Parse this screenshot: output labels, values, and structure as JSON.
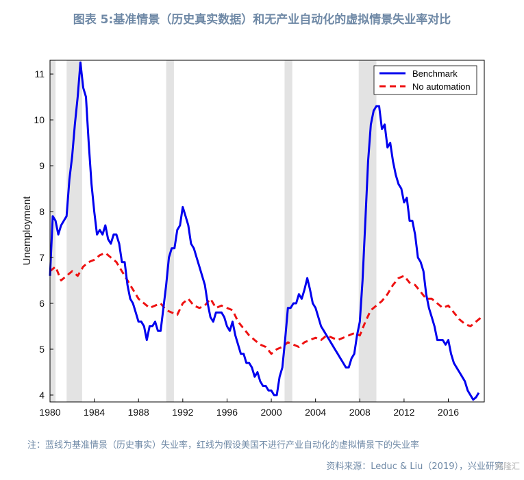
{
  "title": "图表 5:基准情景（历史真实数据）和无产业自动化的虚拟情景失业率对比",
  "note": "注：蓝线为基准情景（历史事实）失业率，红线为假设美国不进行产业自动化的虚拟情景下的失业率",
  "source": "资料来源：Leduc & Liu（2019），兴业研究",
  "watermark": "格隆汇",
  "chart_data": {
    "type": "line",
    "title": "",
    "xlabel": "",
    "ylabel": "Unemployment",
    "xlim": [
      1980,
      2019.25
    ],
    "ylim": [
      3.85,
      11.3
    ],
    "xticks": [
      1980,
      1984,
      1988,
      1992,
      1996,
      2000,
      2004,
      2008,
      2012,
      2016
    ],
    "yticks": [
      4,
      5,
      6,
      7,
      8,
      9,
      10,
      11
    ],
    "recession_shading": [
      [
        1980.0,
        1980.5
      ],
      [
        1981.5,
        1982.9
      ],
      [
        1990.5,
        1991.2
      ],
      [
        2001.2,
        2001.9
      ],
      [
        2007.9,
        2009.5
      ]
    ],
    "legend_position": "top-right",
    "colors": {
      "benchmark": "#0000ee",
      "no_automation": "#ee1111",
      "shading": "#e3e3e3"
    },
    "series": [
      {
        "name": "Benchmark",
        "style": "solid",
        "points": [
          [
            1980.0,
            6.6
          ],
          [
            1980.25,
            7.9
          ],
          [
            1980.5,
            7.8
          ],
          [
            1980.75,
            7.5
          ],
          [
            1981.0,
            7.7
          ],
          [
            1981.25,
            7.8
          ],
          [
            1981.5,
            7.9
          ],
          [
            1981.75,
            8.7
          ],
          [
            1982.0,
            9.2
          ],
          [
            1982.25,
            9.9
          ],
          [
            1982.5,
            10.5
          ],
          [
            1982.75,
            11.25
          ],
          [
            1983.0,
            10.7
          ],
          [
            1983.25,
            10.5
          ],
          [
            1983.5,
            9.5
          ],
          [
            1983.75,
            8.6
          ],
          [
            1984.0,
            8.0
          ],
          [
            1984.25,
            7.5
          ],
          [
            1984.5,
            7.6
          ],
          [
            1984.75,
            7.5
          ],
          [
            1985.0,
            7.7
          ],
          [
            1985.25,
            7.4
          ],
          [
            1985.5,
            7.3
          ],
          [
            1985.75,
            7.5
          ],
          [
            1986.0,
            7.5
          ],
          [
            1986.25,
            7.3
          ],
          [
            1986.5,
            6.9
          ],
          [
            1986.75,
            6.9
          ],
          [
            1987.0,
            6.4
          ],
          [
            1987.25,
            6.1
          ],
          [
            1987.5,
            6.0
          ],
          [
            1987.75,
            5.8
          ],
          [
            1988.0,
            5.6
          ],
          [
            1988.25,
            5.6
          ],
          [
            1988.5,
            5.5
          ],
          [
            1988.75,
            5.2
          ],
          [
            1989.0,
            5.5
          ],
          [
            1989.25,
            5.5
          ],
          [
            1989.5,
            5.6
          ],
          [
            1989.75,
            5.4
          ],
          [
            1990.0,
            5.4
          ],
          [
            1990.25,
            5.9
          ],
          [
            1990.5,
            6.4
          ],
          [
            1990.75,
            7.0
          ],
          [
            1991.0,
            7.2
          ],
          [
            1991.25,
            7.2
          ],
          [
            1991.5,
            7.6
          ],
          [
            1991.75,
            7.7
          ],
          [
            1992.0,
            8.1
          ],
          [
            1992.25,
            7.9
          ],
          [
            1992.5,
            7.7
          ],
          [
            1992.75,
            7.3
          ],
          [
            1993.0,
            7.2
          ],
          [
            1993.25,
            7.0
          ],
          [
            1993.5,
            6.8
          ],
          [
            1993.75,
            6.6
          ],
          [
            1994.0,
            6.4
          ],
          [
            1994.25,
            6.0
          ],
          [
            1994.5,
            5.7
          ],
          [
            1994.75,
            5.6
          ],
          [
            1995.0,
            5.8
          ],
          [
            1995.25,
            5.8
          ],
          [
            1995.5,
            5.8
          ],
          [
            1995.75,
            5.7
          ],
          [
            1996.0,
            5.5
          ],
          [
            1996.25,
            5.4
          ],
          [
            1996.5,
            5.6
          ],
          [
            1996.75,
            5.3
          ],
          [
            1997.0,
            5.1
          ],
          [
            1997.25,
            4.9
          ],
          [
            1997.5,
            4.9
          ],
          [
            1997.75,
            4.7
          ],
          [
            1998.0,
            4.7
          ],
          [
            1998.25,
            4.6
          ],
          [
            1998.5,
            4.4
          ],
          [
            1998.75,
            4.5
          ],
          [
            1999.0,
            4.3
          ],
          [
            1999.25,
            4.2
          ],
          [
            1999.5,
            4.2
          ],
          [
            1999.75,
            4.1
          ],
          [
            2000.0,
            4.1
          ],
          [
            2000.25,
            4.0
          ],
          [
            2000.5,
            4.0
          ],
          [
            2000.75,
            4.4
          ],
          [
            2001.0,
            4.6
          ],
          [
            2001.25,
            5.2
          ],
          [
            2001.5,
            5.9
          ],
          [
            2001.75,
            5.9
          ],
          [
            2002.0,
            6.0
          ],
          [
            2002.25,
            6.0
          ],
          [
            2002.5,
            6.2
          ],
          [
            2002.75,
            6.1
          ],
          [
            2003.0,
            6.3
          ],
          [
            2003.25,
            6.55
          ],
          [
            2003.5,
            6.3
          ],
          [
            2003.75,
            6.0
          ],
          [
            2004.0,
            5.9
          ],
          [
            2004.25,
            5.7
          ],
          [
            2004.5,
            5.5
          ],
          [
            2004.75,
            5.4
          ],
          [
            2005.0,
            5.3
          ],
          [
            2005.25,
            5.2
          ],
          [
            2005.5,
            5.1
          ],
          [
            2005.75,
            5.0
          ],
          [
            2006.0,
            4.9
          ],
          [
            2006.25,
            4.8
          ],
          [
            2006.5,
            4.7
          ],
          [
            2006.75,
            4.6
          ],
          [
            2007.0,
            4.6
          ],
          [
            2007.25,
            4.8
          ],
          [
            2007.5,
            4.9
          ],
          [
            2007.75,
            5.3
          ],
          [
            2008.0,
            5.6
          ],
          [
            2008.25,
            6.5
          ],
          [
            2008.5,
            7.8
          ],
          [
            2008.75,
            9.1
          ],
          [
            2009.0,
            9.9
          ],
          [
            2009.25,
            10.2
          ],
          [
            2009.5,
            10.3
          ],
          [
            2009.75,
            10.3
          ],
          [
            2010.0,
            9.8
          ],
          [
            2010.25,
            9.9
          ],
          [
            2010.5,
            9.4
          ],
          [
            2010.75,
            9.5
          ],
          [
            2011.0,
            9.1
          ],
          [
            2011.25,
            8.8
          ],
          [
            2011.5,
            8.6
          ],
          [
            2011.75,
            8.5
          ],
          [
            2012.0,
            8.2
          ],
          [
            2012.25,
            8.3
          ],
          [
            2012.5,
            7.8
          ],
          [
            2012.75,
            7.8
          ],
          [
            2013.0,
            7.5
          ],
          [
            2013.25,
            7.0
          ],
          [
            2013.5,
            6.9
          ],
          [
            2013.75,
            6.7
          ],
          [
            2014.0,
            6.2
          ],
          [
            2014.25,
            5.9
          ],
          [
            2014.5,
            5.7
          ],
          [
            2014.75,
            5.5
          ],
          [
            2015.0,
            5.2
          ],
          [
            2015.25,
            5.2
          ],
          [
            2015.5,
            5.2
          ],
          [
            2015.75,
            5.1
          ],
          [
            2016.0,
            5.2
          ],
          [
            2016.25,
            4.9
          ],
          [
            2016.5,
            4.7
          ],
          [
            2016.75,
            4.6
          ],
          [
            2017.0,
            4.5
          ],
          [
            2017.25,
            4.4
          ],
          [
            2017.5,
            4.3
          ],
          [
            2017.75,
            4.1
          ],
          [
            2018.0,
            4.0
          ],
          [
            2018.25,
            3.9
          ],
          [
            2018.5,
            3.95
          ],
          [
            2018.75,
            4.05
          ]
        ]
      },
      {
        "name": "No automation",
        "style": "dashed",
        "points": [
          [
            1980.0,
            6.7
          ],
          [
            1980.5,
            6.8
          ],
          [
            1981.0,
            6.5
          ],
          [
            1981.5,
            6.6
          ],
          [
            1982.0,
            6.7
          ],
          [
            1982.5,
            6.6
          ],
          [
            1983.0,
            6.8
          ],
          [
            1983.5,
            6.9
          ],
          [
            1984.0,
            6.95
          ],
          [
            1984.5,
            7.05
          ],
          [
            1985.0,
            7.1
          ],
          [
            1985.5,
            7.0
          ],
          [
            1986.0,
            6.9
          ],
          [
            1986.5,
            6.7
          ],
          [
            1987.0,
            6.5
          ],
          [
            1987.5,
            6.3
          ],
          [
            1988.0,
            6.1
          ],
          [
            1988.5,
            6.0
          ],
          [
            1989.0,
            5.9
          ],
          [
            1989.5,
            5.95
          ],
          [
            1990.0,
            6.0
          ],
          [
            1990.5,
            5.85
          ],
          [
            1991.0,
            5.8
          ],
          [
            1991.5,
            5.75
          ],
          [
            1992.0,
            6.0
          ],
          [
            1992.5,
            6.1
          ],
          [
            1993.0,
            5.95
          ],
          [
            1993.5,
            5.9
          ],
          [
            1994.0,
            5.95
          ],
          [
            1994.5,
            6.1
          ],
          [
            1995.0,
            5.9
          ],
          [
            1995.5,
            5.95
          ],
          [
            1996.0,
            5.9
          ],
          [
            1996.5,
            5.85
          ],
          [
            1997.0,
            5.6
          ],
          [
            1997.5,
            5.45
          ],
          [
            1998.0,
            5.3
          ],
          [
            1998.5,
            5.2
          ],
          [
            1999.0,
            5.1
          ],
          [
            1999.5,
            5.05
          ],
          [
            2000.0,
            4.9
          ],
          [
            2000.5,
            5.0
          ],
          [
            2001.0,
            5.05
          ],
          [
            2001.5,
            5.15
          ],
          [
            2002.0,
            5.1
          ],
          [
            2002.5,
            5.05
          ],
          [
            2003.0,
            5.15
          ],
          [
            2003.5,
            5.2
          ],
          [
            2004.0,
            5.25
          ],
          [
            2004.5,
            5.2
          ],
          [
            2005.0,
            5.3
          ],
          [
            2005.5,
            5.25
          ],
          [
            2006.0,
            5.2
          ],
          [
            2006.5,
            5.25
          ],
          [
            2007.0,
            5.3
          ],
          [
            2007.5,
            5.35
          ],
          [
            2008.0,
            5.3
          ],
          [
            2008.5,
            5.6
          ],
          [
            2009.0,
            5.85
          ],
          [
            2009.5,
            5.95
          ],
          [
            2010.0,
            6.05
          ],
          [
            2010.5,
            6.2
          ],
          [
            2011.0,
            6.4
          ],
          [
            2011.5,
            6.55
          ],
          [
            2012.0,
            6.6
          ],
          [
            2012.5,
            6.45
          ],
          [
            2013.0,
            6.4
          ],
          [
            2013.5,
            6.25
          ],
          [
            2014.0,
            6.1
          ],
          [
            2014.5,
            6.1
          ],
          [
            2015.0,
            6.0
          ],
          [
            2015.5,
            5.9
          ],
          [
            2016.0,
            5.95
          ],
          [
            2016.5,
            5.8
          ],
          [
            2017.0,
            5.65
          ],
          [
            2017.5,
            5.55
          ],
          [
            2018.0,
            5.5
          ],
          [
            2018.5,
            5.6
          ],
          [
            2019.0,
            5.7
          ],
          [
            2019.25,
            5.7
          ]
        ]
      }
    ]
  }
}
